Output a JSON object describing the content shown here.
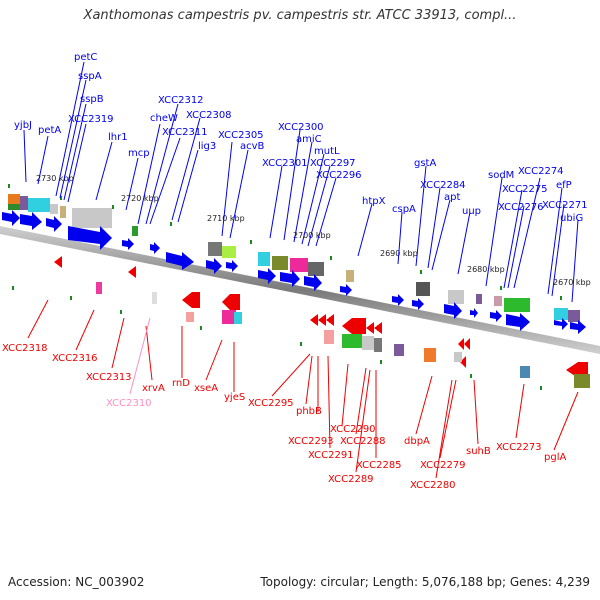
{
  "title": "Xanthomonas campestris pv. campestris str. ATCC 33913, compl...",
  "footer": {
    "accession": "Accession: NC_003902",
    "topology": "Topology: circular; Length: 5,076,188 bp; Genes: 4,239"
  },
  "colors": {
    "forward": "#0000ee",
    "reverse": "#ee0000",
    "reverse_light": "#ff8fbf",
    "axis": "#888888"
  },
  "kbp_labels": [
    "2730 kbp",
    "2720 kbp",
    "2710 kbp",
    "2700 kbp",
    "2690 kbp",
    "2680 kbp",
    "2670 kbp"
  ],
  "forward_genes": [
    "yjbJ",
    "petA",
    "petC",
    "sspA",
    "sspB",
    "XCC2319",
    "lhr1",
    "mcp",
    "cheW",
    "XCC2312",
    "XCC2311",
    "XCC2308",
    "lig3",
    "XCC2305",
    "acvB",
    "XCC2301",
    "XCC2300",
    "amiC",
    "mutL",
    "XCC2297",
    "XCC2296",
    "htpX",
    "cspA",
    "gstA",
    "XCC2284",
    "apt",
    "uup",
    "sodM",
    "XCC2274",
    "XCC2275",
    "XCC2276",
    "efP",
    "XCC2271",
    "ubiG"
  ],
  "reverse_genes": [
    "XCC2318",
    "XCC2316",
    "XCC2313",
    "xrvA",
    "XCC2310",
    "rnD",
    "xseA",
    "yjeS",
    "XCC2295",
    "phbB",
    "XCC2293",
    "XCC2291",
    "XCC2290",
    "XCC2288",
    "XCC2289",
    "XCC2285",
    "dbpA",
    "XCC2279",
    "XCC2280",
    "suhB",
    "XCC2273",
    "pglA"
  ]
}
